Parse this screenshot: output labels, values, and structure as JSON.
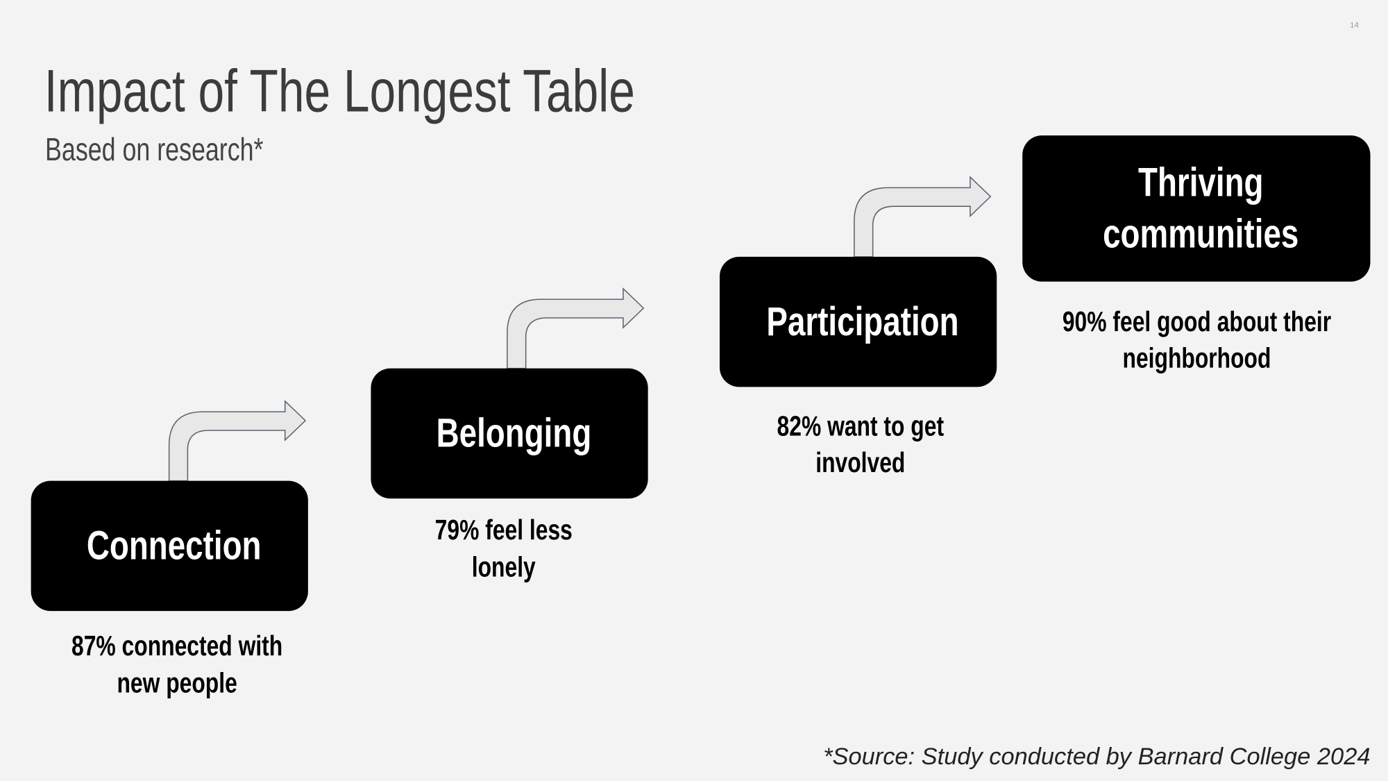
{
  "slide_number": "14",
  "title": "Impact of The Longest Table",
  "subtitle": "Based on research*",
  "steps": [
    {
      "label": [
        "Connection"
      ],
      "stat": [
        "87% connected with",
        "new people"
      ]
    },
    {
      "label": [
        "Belonging"
      ],
      "stat": [
        "79% feel less",
        "lonely"
      ]
    },
    {
      "label": [
        "Participation"
      ],
      "stat": [
        "82% want to get",
        "involved"
      ]
    },
    {
      "label": [
        "Thriving",
        "communities"
      ],
      "stat": [
        "90% feel good about their",
        "neighborhood"
      ]
    }
  ],
  "source": "*Source: Study conducted by Barnard College 2024"
}
